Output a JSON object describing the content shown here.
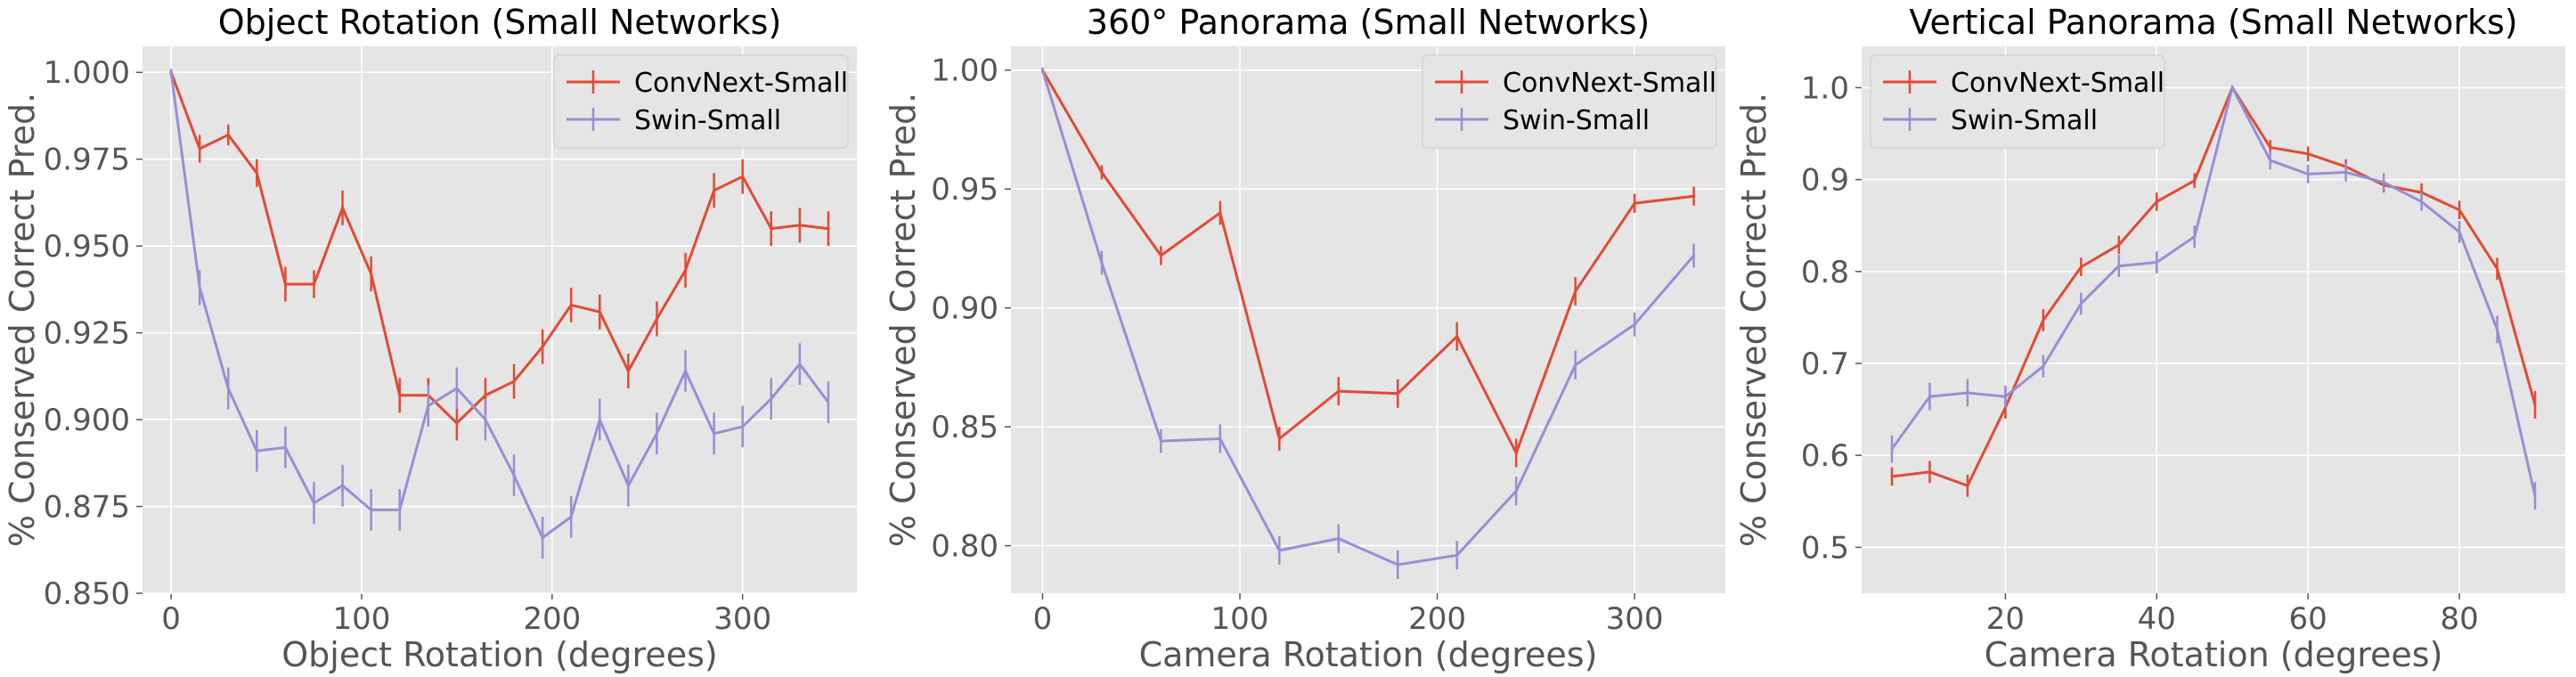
{
  "colors": {
    "convnext": "#E24A33",
    "swin": "#988ED5",
    "plot_bg": "#E5E5E5",
    "grid": "#FFFFFF",
    "text": "#555555",
    "title": "#000000"
  },
  "chart_data": [
    {
      "type": "line",
      "title": "Object Rotation (Small Networks)",
      "xlabel": "Object Rotation (degrees)",
      "ylabel": "% Conserved Correct Pred.",
      "xlim": [
        -15,
        360
      ],
      "ylim": [
        0.85,
        1.0075
      ],
      "xticks": [
        0,
        100,
        200,
        300
      ],
      "yticks": [
        0.85,
        0.875,
        0.9,
        0.925,
        0.95,
        0.975,
        1.0
      ],
      "ytick_labels": [
        "0.850",
        "0.875",
        "0.900",
        "0.925",
        "0.950",
        "0.975",
        "1.000"
      ],
      "grid": true,
      "legend": "top-right",
      "x": [
        0,
        15,
        30,
        45,
        60,
        75,
        90,
        105,
        120,
        135,
        150,
        165,
        180,
        195,
        210,
        225,
        240,
        255,
        270,
        285,
        300,
        315,
        330,
        345
      ],
      "series": [
        {
          "name": "ConvNext-Small",
          "values": [
            1.0,
            0.978,
            0.982,
            0.971,
            0.939,
            0.939,
            0.961,
            0.942,
            0.907,
            0.907,
            0.899,
            0.907,
            0.911,
            0.921,
            0.933,
            0.931,
            0.914,
            0.929,
            0.943,
            0.966,
            0.97,
            0.955,
            0.956,
            0.955
          ],
          "errors": [
            0.001,
            0.004,
            0.003,
            0.004,
            0.005,
            0.004,
            0.005,
            0.005,
            0.005,
            0.005,
            0.005,
            0.005,
            0.005,
            0.005,
            0.005,
            0.005,
            0.005,
            0.005,
            0.005,
            0.005,
            0.005,
            0.005,
            0.005,
            0.005
          ]
        },
        {
          "name": "Swin-Small",
          "values": [
            1.0,
            0.938,
            0.909,
            0.891,
            0.892,
            0.876,
            0.881,
            0.874,
            0.874,
            0.904,
            0.909,
            0.9,
            0.884,
            0.866,
            0.872,
            0.9,
            0.881,
            0.896,
            0.914,
            0.896,
            0.898,
            0.906,
            0.916,
            0.905
          ],
          "errors": [
            0.001,
            0.005,
            0.006,
            0.006,
            0.006,
            0.006,
            0.006,
            0.006,
            0.006,
            0.006,
            0.006,
            0.006,
            0.006,
            0.006,
            0.006,
            0.006,
            0.006,
            0.006,
            0.006,
            0.006,
            0.006,
            0.006,
            0.006,
            0.006
          ]
        }
      ]
    },
    {
      "type": "line",
      "title": "360° Panorama (Small Networks)",
      "xlabel": "Camera Rotation (degrees)",
      "ylabel": "% Conserved Correct Pred.",
      "xlim": [
        -16,
        346
      ],
      "ylim": [
        0.78,
        1.01
      ],
      "xticks": [
        0,
        100,
        200,
        300
      ],
      "yticks": [
        0.8,
        0.85,
        0.9,
        0.95,
        1.0
      ],
      "ytick_labels": [
        "0.80",
        "0.85",
        "0.90",
        "0.95",
        "1.00"
      ],
      "grid": true,
      "legend": "top-right",
      "x": [
        0,
        30,
        60,
        90,
        120,
        150,
        180,
        210,
        240,
        270,
        300,
        330
      ],
      "series": [
        {
          "name": "ConvNext-Small",
          "values": [
            1.0,
            0.957,
            0.922,
            0.94,
            0.845,
            0.865,
            0.864,
            0.888,
            0.839,
            0.907,
            0.944,
            0.947
          ],
          "errors": [
            0.001,
            0.003,
            0.004,
            0.005,
            0.005,
            0.006,
            0.006,
            0.006,
            0.006,
            0.006,
            0.004,
            0.004
          ]
        },
        {
          "name": "Swin-Small",
          "values": [
            1.0,
            0.919,
            0.844,
            0.845,
            0.798,
            0.803,
            0.792,
            0.796,
            0.823,
            0.876,
            0.893,
            0.922
          ],
          "errors": [
            0.001,
            0.005,
            0.005,
            0.006,
            0.006,
            0.006,
            0.006,
            0.006,
            0.006,
            0.006,
            0.005,
            0.005
          ]
        }
      ]
    },
    {
      "type": "line",
      "title": "Vertical Panorama (Small Networks)",
      "xlabel": "Camera Rotation (degrees)",
      "ylabel": "% Conserved Correct Pred.",
      "xlim": [
        1,
        94
      ],
      "ylim": [
        0.45,
        1.045
      ],
      "xticks": [
        20,
        40,
        60,
        80
      ],
      "yticks": [
        0.5,
        0.6,
        0.7,
        0.8,
        0.9,
        1.0
      ],
      "ytick_labels": [
        "0.5",
        "0.6",
        "0.7",
        "0.8",
        "0.9",
        "1.0"
      ],
      "grid": true,
      "legend": "top-left",
      "x": [
        5,
        10,
        15,
        20,
        25,
        30,
        35,
        40,
        45,
        50,
        55,
        60,
        65,
        70,
        75,
        80,
        85,
        90
      ],
      "series": [
        {
          "name": "ConvNext-Small",
          "values": [
            0.577,
            0.582,
            0.567,
            0.652,
            0.747,
            0.805,
            0.829,
            0.876,
            0.899,
            1.0,
            0.935,
            0.928,
            0.914,
            0.894,
            0.886,
            0.867,
            0.803,
            0.655
          ],
          "errors": [
            0.01,
            0.012,
            0.012,
            0.012,
            0.012,
            0.01,
            0.01,
            0.01,
            0.008,
            0.002,
            0.008,
            0.008,
            0.008,
            0.008,
            0.01,
            0.01,
            0.012,
            0.015
          ]
        },
        {
          "name": "Swin-Small",
          "values": [
            0.607,
            0.664,
            0.668,
            0.664,
            0.697,
            0.765,
            0.806,
            0.81,
            0.838,
            1.0,
            0.921,
            0.906,
            0.908,
            0.897,
            0.876,
            0.843,
            0.737,
            0.556
          ],
          "errors": [
            0.015,
            0.015,
            0.015,
            0.012,
            0.012,
            0.012,
            0.012,
            0.012,
            0.012,
            0.002,
            0.01,
            0.01,
            0.01,
            0.01,
            0.01,
            0.012,
            0.015,
            0.015
          ]
        }
      ]
    }
  ]
}
